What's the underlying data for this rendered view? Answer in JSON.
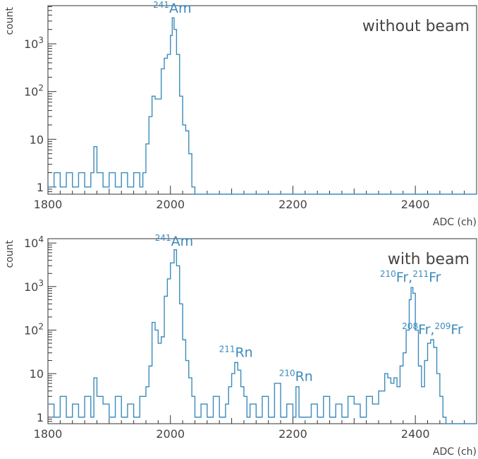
{
  "colors": {
    "series": "#3b8bbd",
    "axis": "#333333",
    "label": "#3b8bbd",
    "text": "#444444"
  },
  "chart_data": [
    {
      "type": "line",
      "panel_label": "without beam",
      "ylabel": "count",
      "xlabel": "ADC (ch)",
      "xlim": [
        1800,
        2500
      ],
      "ylim_log10": [
        -0.15,
        3.8
      ],
      "yscale": "log",
      "xticks": [
        "1800",
        "2000",
        "2200",
        "2400"
      ],
      "yticks": [
        {
          "base": "1",
          "exp": ""
        },
        {
          "base": "10",
          "exp": ""
        },
        {
          "base": "10",
          "exp": "2"
        },
        {
          "base": "10",
          "exp": "3"
        }
      ],
      "grid": false,
      "annotations": [
        {
          "sup": "241",
          "text": "Am",
          "x": 2003,
          "y": 3500
        }
      ],
      "series": [
        {
          "x": [
            1800,
            1810,
            1820,
            1830,
            1840,
            1850,
            1860,
            1870,
            1875,
            1880,
            1890,
            1900,
            1910,
            1920,
            1930,
            1940,
            1950,
            1955,
            1960,
            1965,
            1970,
            1975,
            1980,
            1985,
            1990,
            1995,
            2000,
            2003,
            2006,
            2010,
            2015,
            2020,
            2025,
            2030,
            2035,
            2040,
            2060,
            2100,
            2200,
            2300,
            2400,
            2500
          ],
          "y": [
            1,
            2,
            1,
            2,
            1,
            2,
            1,
            2,
            7,
            2,
            1,
            2,
            1,
            2,
            1,
            2,
            1,
            2,
            8,
            30,
            80,
            70,
            70,
            300,
            500,
            600,
            1500,
            3500,
            2000,
            600,
            80,
            20,
            15,
            5,
            1,
            0,
            0,
            0,
            0,
            0,
            0,
            0
          ]
        }
      ]
    },
    {
      "type": "line",
      "panel_label": "with beam",
      "ylabel": "count",
      "xlabel": "ADC (ch)",
      "xlim": [
        1800,
        2500
      ],
      "ylim_log10": [
        -0.15,
        4.1
      ],
      "yscale": "log",
      "xticks": [
        "1800",
        "2000",
        "2200",
        "2400"
      ],
      "yticks": [
        {
          "base": "1",
          "exp": ""
        },
        {
          "base": "10",
          "exp": ""
        },
        {
          "base": "10",
          "exp": "2"
        },
        {
          "base": "10",
          "exp": "3"
        },
        {
          "base": "10",
          "exp": "4"
        }
      ],
      "grid": false,
      "annotations": [
        {
          "sup": "241",
          "text": "Am",
          "x": 2006,
          "y": 7000
        },
        {
          "sup": "211",
          "text": "Rn",
          "x": 2107,
          "y": 18
        },
        {
          "sup": "210",
          "text": "Rn",
          "x": 2205,
          "y": 5
        },
        {
          "sup": "210",
          "text": "Fr,",
          "sup2": "211",
          "text2": "Fr",
          "x": 2392,
          "y": 950
        },
        {
          "sup": "208",
          "text": "Fr,",
          "sup2": "209",
          "text2": "Fr",
          "x": 2428,
          "y": 60
        }
      ],
      "series": [
        {
          "x": [
            1800,
            1810,
            1820,
            1830,
            1840,
            1850,
            1860,
            1870,
            1875,
            1880,
            1890,
            1900,
            1910,
            1920,
            1930,
            1940,
            1950,
            1960,
            1965,
            1970,
            1975,
            1980,
            1985,
            1990,
            1995,
            2000,
            2006,
            2010,
            2015,
            2020,
            2025,
            2030,
            2035,
            2040,
            2050,
            2060,
            2070,
            2080,
            2090,
            2095,
            2100,
            2105,
            2110,
            2115,
            2120,
            2125,
            2130,
            2140,
            2150,
            2160,
            2170,
            2180,
            2190,
            2200,
            2205,
            2210,
            2220,
            2230,
            2240,
            2250,
            2260,
            2270,
            2280,
            2290,
            2300,
            2310,
            2320,
            2330,
            2340,
            2350,
            2355,
            2360,
            2365,
            2370,
            2375,
            2380,
            2385,
            2390,
            2393,
            2396,
            2400,
            2405,
            2410,
            2415,
            2420,
            2425,
            2430,
            2435,
            2440,
            2445,
            2450,
            2460,
            2480,
            2500
          ],
          "y": [
            2,
            1,
            3,
            1,
            2,
            1,
            3,
            1,
            8,
            3,
            2,
            1,
            3,
            1,
            2,
            1,
            3,
            5,
            15,
            150,
            100,
            50,
            70,
            600,
            1500,
            3500,
            7000,
            3000,
            400,
            60,
            20,
            8,
            3,
            1,
            2,
            1,
            3,
            1,
            2,
            5,
            10,
            18,
            12,
            5,
            3,
            1,
            2,
            1,
            3,
            1,
            6,
            1,
            2,
            1,
            5,
            1,
            1,
            2,
            1,
            3,
            1,
            2,
            1,
            3,
            2,
            1,
            3,
            2,
            4,
            10,
            8,
            6,
            8,
            5,
            15,
            30,
            100,
            500,
            950,
            700,
            100,
            15,
            5,
            20,
            50,
            60,
            40,
            10,
            3,
            1,
            0,
            0,
            0,
            0
          ]
        }
      ]
    }
  ]
}
